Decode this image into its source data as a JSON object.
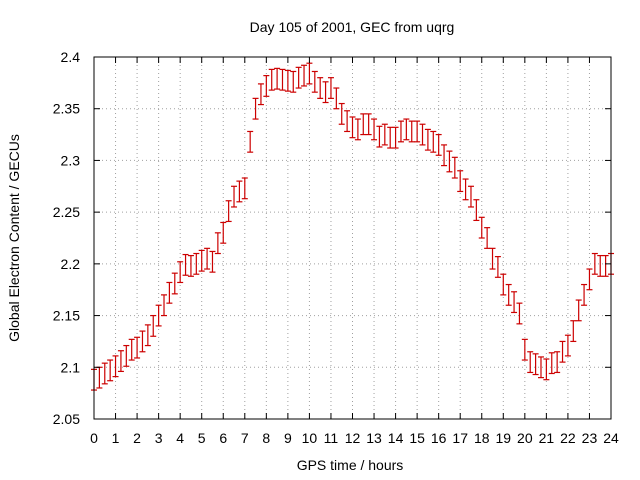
{
  "chart_data": {
    "type": "scatter",
    "title": "Day 105 of 2001, GEC from uqrg",
    "xlabel": "GPS time / hours",
    "ylabel": "Global Electron Content / GECUs",
    "xlim": [
      0,
      24
    ],
    "ylim": [
      2.05,
      2.4
    ],
    "grid": true,
    "xticks": [
      "0",
      "1",
      "2",
      "3",
      "4",
      "5",
      "6",
      "7",
      "8",
      "9",
      "10",
      "11",
      "12",
      "13",
      "14",
      "15",
      "16",
      "17",
      "18",
      "19",
      "20",
      "21",
      "22",
      "23",
      "24"
    ],
    "yticks": [
      "2.05",
      "2.1",
      "2.15",
      "2.2",
      "2.25",
      "2.3",
      "2.35",
      "2.4"
    ],
    "color": "#cc0000",
    "error": 0.01,
    "x": [
      0.0,
      0.25,
      0.5,
      0.75,
      1.0,
      1.25,
      1.5,
      1.75,
      2.0,
      2.25,
      2.5,
      2.75,
      3.0,
      3.25,
      3.5,
      3.75,
      4.0,
      4.25,
      4.5,
      4.75,
      5.0,
      5.25,
      5.5,
      5.75,
      6.0,
      6.25,
      6.5,
      6.75,
      7.0,
      7.25,
      7.5,
      7.75,
      8.0,
      8.25,
      8.5,
      8.75,
      9.0,
      9.25,
      9.5,
      9.75,
      10.0,
      10.25,
      10.5,
      10.75,
      11.0,
      11.25,
      11.5,
      11.75,
      12.0,
      12.25,
      12.5,
      12.75,
      13.0,
      13.25,
      13.5,
      13.75,
      14.0,
      14.25,
      14.5,
      14.75,
      15.0,
      15.25,
      15.5,
      15.75,
      16.0,
      16.25,
      16.5,
      16.75,
      17.0,
      17.25,
      17.5,
      17.75,
      18.0,
      18.25,
      18.5,
      18.75,
      19.0,
      19.25,
      19.5,
      19.75,
      20.0,
      20.25,
      20.5,
      20.75,
      21.0,
      21.25,
      21.5,
      21.75,
      22.0,
      22.25,
      22.5,
      22.75,
      23.0,
      23.25,
      23.5,
      23.75,
      24.0
    ],
    "y": [
      2.088,
      2.09,
      2.094,
      2.097,
      2.101,
      2.106,
      2.111,
      2.117,
      2.119,
      2.125,
      2.131,
      2.14,
      2.15,
      2.16,
      2.172,
      2.181,
      2.192,
      2.199,
      2.198,
      2.2,
      2.203,
      2.205,
      2.202,
      2.22,
      2.23,
      2.251,
      2.265,
      2.27,
      2.273,
      2.318,
      2.35,
      2.364,
      2.372,
      2.378,
      2.379,
      2.378,
      2.377,
      2.376,
      2.38,
      2.382,
      2.384,
      2.376,
      2.37,
      2.366,
      2.37,
      2.36,
      2.345,
      2.338,
      2.332,
      2.33,
      2.335,
      2.335,
      2.33,
      2.323,
      2.325,
      2.322,
      2.322,
      2.328,
      2.33,
      2.328,
      2.328,
      2.325,
      2.32,
      2.318,
      2.315,
      2.305,
      2.299,
      2.293,
      2.28,
      2.272,
      2.265,
      2.252,
      2.235,
      2.225,
      2.205,
      2.197,
      2.18,
      2.17,
      2.163,
      2.152,
      2.117,
      2.105,
      2.103,
      2.1,
      2.098,
      2.104,
      2.105,
      2.115,
      2.121,
      2.135,
      2.155,
      2.17,
      2.185,
      2.2,
      2.198,
      2.198,
      2.2
    ]
  }
}
